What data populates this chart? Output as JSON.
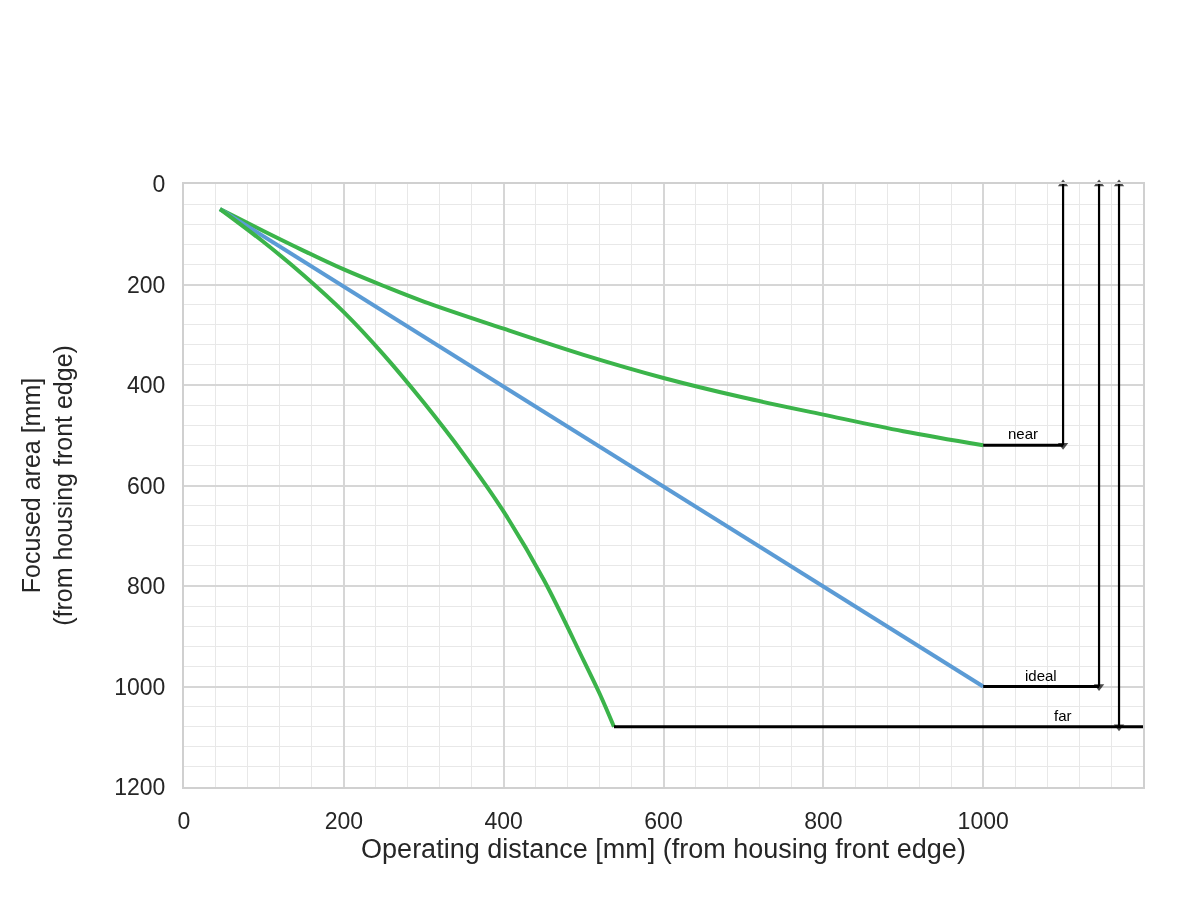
{
  "chart_data": {
    "type": "line",
    "xlabel": "Operating distance [mm] (from housing front edge)",
    "ylabel": "Focused area [mm]\n(from housing front edge)",
    "xlim": [
      0,
      1200
    ],
    "xticks": [
      0,
      200,
      400,
      600,
      800,
      1000
    ],
    "ylim": [
      1200,
      0
    ],
    "yticks": [
      0,
      200,
      400,
      600,
      800,
      1000,
      1200
    ],
    "grid": true,
    "legend": false,
    "series": [
      {
        "color": "#3bb44a",
        "x": [
          45,
          100,
          150,
          200,
          250,
          300,
          400,
          500,
          600,
          700,
          800,
          900,
          1000
        ],
        "values": [
          50,
          94,
          133,
          170,
          203,
          234,
          288,
          340,
          386,
          425,
          459,
          492,
          520
        ]
      },
      {
        "color": "#5b9bd5",
        "x": [
          45,
          1000
        ],
        "values": [
          50,
          1000
        ]
      },
      {
        "color": "#3bb44a",
        "x": [
          45,
          100,
          150,
          200,
          250,
          300,
          350,
          400,
          450,
          500,
          520,
          538
        ],
        "values": [
          50,
          116,
          182,
          255,
          340,
          435,
          538,
          652,
          787,
          948,
          1014,
          1080
        ]
      },
      {
        "name": "near",
        "color": "#000000",
        "x": [
          1000,
          1100
        ],
        "values": [
          520,
          520
        ]
      },
      {
        "name": "ideal",
        "color": "#000000",
        "x": [
          1000,
          1145
        ],
        "values": [
          1000,
          1000
        ]
      },
      {
        "name": "far",
        "color": "#000000",
        "x": [
          538,
          1200
        ],
        "values": [
          1080,
          1080
        ]
      },
      {
        "color": "#000000",
        "marker": "triangle",
        "x": [
          1100,
          1100
        ],
        "values": [
          0,
          520
        ]
      },
      {
        "color": "#000000",
        "marker": "triangle",
        "x": [
          1145,
          1145
        ],
        "values": [
          0,
          1000
        ]
      },
      {
        "color": "#000000",
        "marker": "triangle",
        "x": [
          1170,
          1170
        ],
        "values": [
          0,
          1080
        ]
      }
    ]
  }
}
